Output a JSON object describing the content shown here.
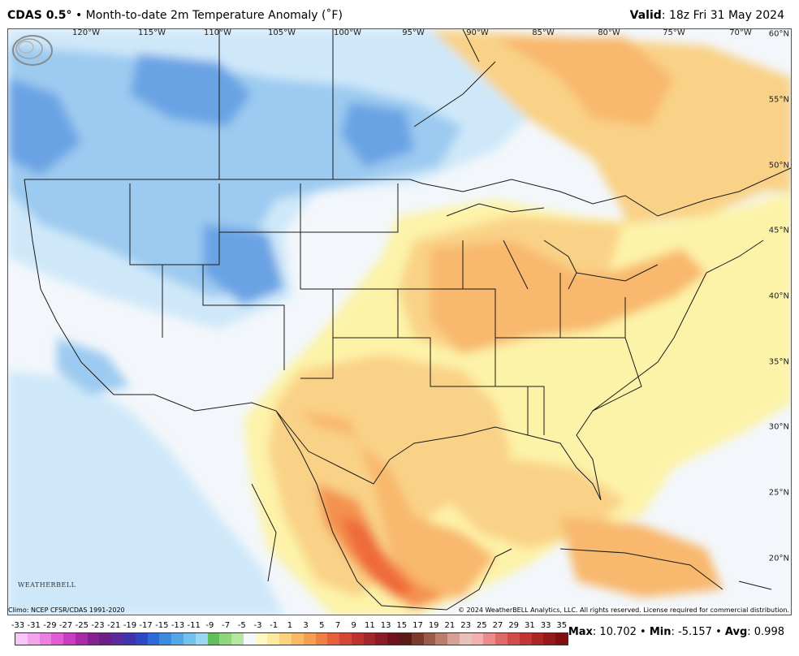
{
  "header": {
    "model": "CDAS 0.5",
    "degree_mark": "°",
    "bullet": "•",
    "title": "Month-to-date 2m Temperature Anomaly (˚F)",
    "valid_label": "Valid",
    "valid_value": ": 18z Fri 31 May 2024"
  },
  "map": {
    "longitude_labels": [
      "120°W",
      "115°W",
      "110°W",
      "105°W",
      "100°W",
      "95°W",
      "90°W",
      "85°W",
      "80°W",
      "75°W",
      "70°W"
    ],
    "latitude_labels": [
      "60°N",
      "55°N",
      "50°N",
      "45°N",
      "40°N",
      "35°N",
      "30°N",
      "25°N",
      "20°N"
    ],
    "colors": {
      "cold_strong": "#6aa3e4",
      "cold": "#9ccaf0",
      "cold_light": "#cfe8f9",
      "neutral": "#f3f7fb",
      "warm_light": "#fdf3a8",
      "warm": "#f9d287",
      "warm_mid": "#f8b86d",
      "warm_strong": "#f4914f",
      "warm_hot": "#ef6a3a"
    }
  },
  "logo": {
    "text": "WEATHERBELL"
  },
  "footer": {
    "climo": "Climo: NCEP CFSR/CDAS 1991-2020",
    "copyright": "© 2024 WeatherBELL Analytics, LLC. All rights reserved. License required for commercial distribution."
  },
  "legend": {
    "labels": [
      "-33",
      "-31",
      "-29",
      "-27",
      "-25",
      "-23",
      "-21",
      "-19",
      "-17",
      "-15",
      "-13",
      "-11",
      "-9",
      "-7",
      "-5",
      "-3",
      "-1",
      "1",
      "3",
      "5",
      "7",
      "9",
      "11",
      "13",
      "15",
      "17",
      "19",
      "21",
      "23",
      "25",
      "27",
      "29",
      "31",
      "33",
      "35"
    ],
    "colors": [
      "#f7c6f4",
      "#f2a4ec",
      "#ec7fe2",
      "#e05bd6",
      "#c93cc0",
      "#a82aa6",
      "#862191",
      "#6b1e86",
      "#5a2a9e",
      "#3f33ad",
      "#2f47c4",
      "#2f68d7",
      "#3b8ae0",
      "#53a7e8",
      "#74c1ee",
      "#9bd6f2",
      "#5fbf5a",
      "#8fd77c",
      "#b7e6a4",
      "#f4f6fb",
      "#fff7c4",
      "#fde9a0",
      "#fbd27e",
      "#f9ba65",
      "#f59f52",
      "#ef8045",
      "#e6613b",
      "#d44734",
      "#bd332f",
      "#a3262a",
      "#8a1b25",
      "#6d131f",
      "#5a1a15",
      "#7b3a2c",
      "#9c5a47",
      "#bc7e6c",
      "#d6a196",
      "#e8c2ba",
      "#f3b0b0",
      "#ea8c8c",
      "#df6969",
      "#d24b4b",
      "#c13535",
      "#ac2525",
      "#961818",
      "#801010"
    ]
  },
  "stats": {
    "max_label": "Max",
    "max_value": ": 10.702",
    "min_label": "Min",
    "min_value": ": -5.157",
    "avg_label": "Avg",
    "avg_value": ": 0.998",
    "sep": " • "
  }
}
